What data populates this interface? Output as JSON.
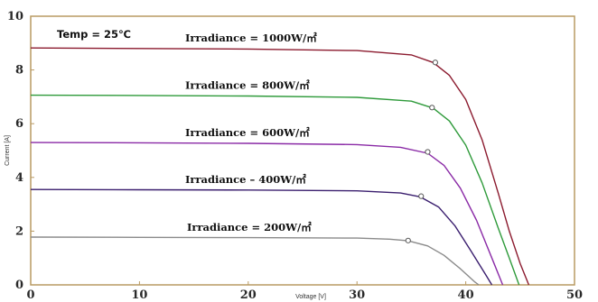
{
  "chart_data": {
    "type": "line",
    "xlabel": "Voltage [V]",
    "ylabel": "Current [A]",
    "xlim": [
      0,
      50
    ],
    "ylim": [
      0,
      10
    ],
    "xticks": [
      "0",
      "10",
      "20",
      "30",
      "40",
      "50"
    ],
    "yticks": [
      "0",
      "2",
      "4",
      "6",
      "8",
      "10"
    ],
    "grid": false,
    "annotation": "Temp = 25℃",
    "series": [
      {
        "name": "Irradiance = 1000W/㎡",
        "color": "#8b1a2e",
        "x": [
          0,
          10,
          20,
          30,
          35,
          37,
          38.5,
          40,
          41.5,
          43,
          44,
          45,
          45.8
        ],
        "y": [
          8.82,
          8.8,
          8.78,
          8.72,
          8.56,
          8.28,
          7.8,
          6.9,
          5.4,
          3.4,
          2.0,
          0.8,
          0
        ],
        "mpp": [
          37.2,
          8.28
        ]
      },
      {
        "name": "Irradiance = 800W/㎡",
        "color": "#2e9a3a",
        "x": [
          0,
          10,
          20,
          30,
          35,
          37,
          38.5,
          40,
          41.5,
          43,
          44,
          44.9
        ],
        "y": [
          7.06,
          7.05,
          7.03,
          6.98,
          6.84,
          6.58,
          6.1,
          5.2,
          3.8,
          2.1,
          1.0,
          0
        ],
        "mpp": [
          36.9,
          6.6
        ]
      },
      {
        "name": "Irradiance = 600W/㎡",
        "color": "#8a2aa6",
        "x": [
          0,
          10,
          20,
          30,
          34,
          36.5,
          38,
          39.5,
          41,
          42.5,
          43.4
        ],
        "y": [
          5.3,
          5.29,
          5.27,
          5.22,
          5.12,
          4.9,
          4.45,
          3.6,
          2.4,
          0.9,
          0
        ],
        "mpp": [
          36.5,
          4.95
        ]
      },
      {
        "name": "Irradiance – 400W/㎡",
        "color": "#3a1e6e",
        "x": [
          0,
          10,
          20,
          30,
          34,
          35.8,
          37.5,
          39,
          40.5,
          41.8,
          42.4
        ],
        "y": [
          3.55,
          3.54,
          3.53,
          3.5,
          3.42,
          3.28,
          2.9,
          2.2,
          1.25,
          0.4,
          0
        ],
        "mpp": [
          35.9,
          3.3
        ]
      },
      {
        "name": "Irradiance = 200W/㎡",
        "color": "#8a8a8a",
        "x": [
          0,
          10,
          20,
          30,
          33,
          34.7,
          36.5,
          38,
          39.5,
          40.8,
          41.2
        ],
        "y": [
          1.78,
          1.77,
          1.76,
          1.74,
          1.7,
          1.64,
          1.45,
          1.1,
          0.6,
          0.12,
          0
        ],
        "mpp": [
          34.7,
          1.65
        ]
      }
    ]
  }
}
